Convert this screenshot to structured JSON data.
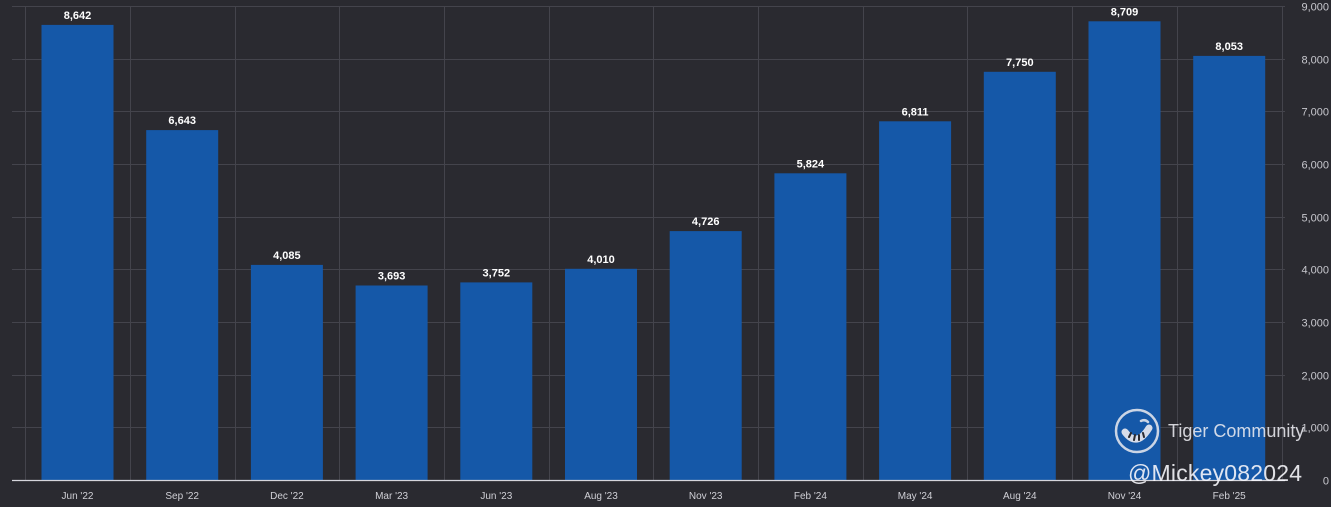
{
  "chart_data": {
    "type": "bar",
    "title": "",
    "xlabel": "",
    "ylabel": "",
    "categories": [
      "Jun '22",
      "Sep '22",
      "Dec '22",
      "Mar '23",
      "Jun '23",
      "Aug '23",
      "Nov '23",
      "Feb '24",
      "May '24",
      "Aug '24",
      "Nov '24",
      "Feb '25"
    ],
    "values": [
      8642,
      6643,
      4085,
      3693,
      3752,
      4010,
      4726,
      5824,
      6811,
      7750,
      8709,
      8053
    ],
    "data_labels": [
      "8,642",
      "6,643",
      "4,085",
      "3,693",
      "3,752",
      "4,010",
      "4,726",
      "5,824",
      "6,811",
      "7,750",
      "8,709",
      "8,053"
    ],
    "ylim": [
      0,
      9000
    ],
    "y_ticks": [
      0,
      1000,
      2000,
      3000,
      4000,
      5000,
      6000,
      7000,
      8000,
      9000
    ],
    "y_tick_labels": [
      "0",
      "1,000",
      "2,000",
      "3,000",
      "4,000",
      "5,000",
      "6,000",
      "7,000",
      "8,000",
      "9,000"
    ],
    "y_axis_side": "right",
    "grid": true,
    "legend": "none",
    "bar_color": "#1558a8"
  },
  "watermark": {
    "brand": "Tiger Community",
    "user": "@Mickey082024",
    "logo_icon": "tiger-logo-icon"
  },
  "colors": {
    "background": "#2a2a30",
    "grid": "#44444c",
    "text": "#ffffff"
  }
}
